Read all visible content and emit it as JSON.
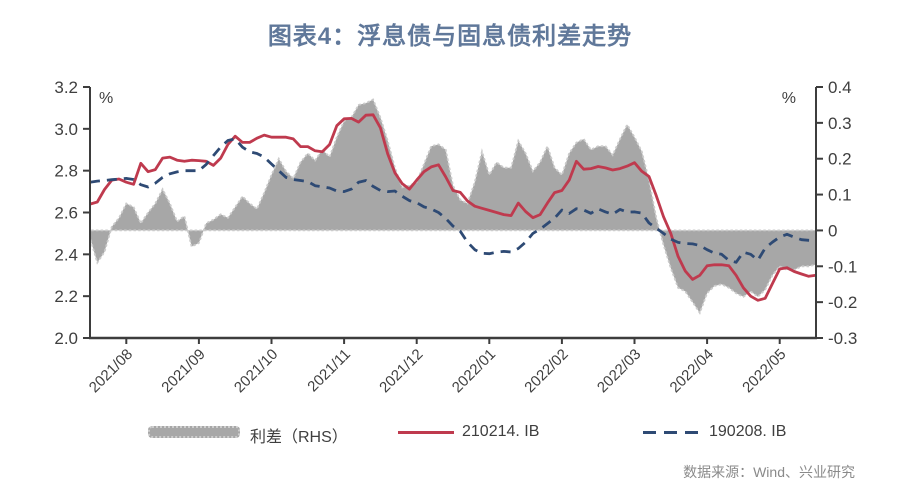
{
  "title": "图表4：浮息债与固息债利差走势",
  "source": "数据来源：Wind、兴业研究",
  "legend": [
    {
      "label": "利差（RHS）",
      "marker": "gray-area-swatch"
    },
    {
      "label": "210214. IB",
      "marker": "red-solid-line"
    },
    {
      "label": "190208. IB",
      "marker": "navy-dashed-line"
    }
  ],
  "colors": {
    "title": "#60789a",
    "red_line": "#bf3a4e",
    "navy_line": "#2e4a74",
    "area_fill": "#a7a7a7",
    "area_edge": "#cbcbcb",
    "axis_line": "#3d3d3d",
    "tick_text": "#3f3f3f",
    "source_text": "#8a8a8a"
  },
  "chart_data": {
    "type": "area",
    "subtype": "dual-axis combo: gray area (right axis) + solid and dashed lines (left axis)",
    "title": "图表4：浮息债与固息债利差走势",
    "x_unit": "month (weekly-resolution samples, 0.1-month step, 2021/08 through 2022/05)",
    "x_start": 0,
    "x_step": 0.1,
    "x_months": 10,
    "x_tick_labels": [
      "2021/08",
      "2021/09",
      "2021/10",
      "2021/11",
      "2021/12",
      "2022/01",
      "2022/02",
      "2022/03",
      "2022/04",
      "2022/05"
    ],
    "left_axis": {
      "unit": "%",
      "min": 2.0,
      "max": 3.2,
      "ticks": [
        {
          "v": 3.2,
          "label": "3.2"
        },
        {
          "v": 3.0,
          "label": "3.0"
        },
        {
          "v": 2.8,
          "label": "2.8"
        },
        {
          "v": 2.6,
          "label": "2.6"
        },
        {
          "v": 2.4,
          "label": "2.4"
        },
        {
          "v": 2.2,
          "label": "2.2"
        },
        {
          "v": 2.0,
          "label": "2.0"
        }
      ]
    },
    "right_axis": {
      "unit": "%",
      "min": -0.3,
      "max": 0.4,
      "ticks": [
        {
          "v": 0.4,
          "label": "0.4"
        },
        {
          "v": 0.3,
          "label": "0.3"
        },
        {
          "v": 0.2,
          "label": "0.2"
        },
        {
          "v": 0.1,
          "label": "0.1"
        },
        {
          "v": 0,
          "label": "0"
        },
        {
          "v": -0.1,
          "label": "-0.1"
        },
        {
          "v": -0.2,
          "label": "-0.2"
        },
        {
          "v": -0.3,
          "label": "-0.3"
        }
      ]
    },
    "grid": false,
    "legend_position": "bottom",
    "series": [
      {
        "name": "利差（RHS）",
        "type": "area",
        "axis": "right",
        "values": [
          -0.02,
          -0.09,
          -0.06,
          0.01,
          0.035,
          0.075,
          0.065,
          0.02,
          0.05,
          0.075,
          0.115,
          0.075,
          0.025,
          0.04,
          -0.045,
          -0.035,
          0.02,
          0.03,
          0.045,
          0.035,
          0.065,
          0.095,
          0.075,
          0.06,
          0.105,
          0.155,
          0.2,
          0.165,
          0.145,
          0.19,
          0.215,
          0.195,
          0.225,
          0.205,
          0.26,
          0.305,
          0.315,
          0.35,
          0.355,
          0.365,
          0.315,
          0.25,
          0.175,
          0.12,
          0.125,
          0.135,
          0.185,
          0.235,
          0.24,
          0.225,
          0.125,
          0.085,
          0.075,
          0.135,
          0.22,
          0.155,
          0.19,
          0.175,
          0.175,
          0.25,
          0.215,
          0.165,
          0.19,
          0.235,
          0.175,
          0.155,
          0.215,
          0.245,
          0.255,
          0.225,
          0.235,
          0.235,
          0.21,
          0.255,
          0.295,
          0.26,
          0.22,
          0.14,
          0.035,
          -0.04,
          -0.105,
          -0.16,
          -0.17,
          -0.2,
          -0.23,
          -0.175,
          -0.155,
          -0.15,
          -0.16,
          -0.175,
          -0.185,
          -0.17,
          -0.185,
          -0.165,
          -0.125,
          -0.1,
          -0.11,
          -0.11,
          -0.1,
          -0.1,
          -0.095
        ]
      },
      {
        "name": "210214.IB",
        "type": "line",
        "dash": false,
        "axis": "left",
        "values": [
          2.64,
          2.65,
          2.71,
          2.755,
          2.76,
          2.745,
          2.735,
          2.835,
          2.795,
          2.805,
          2.86,
          2.865,
          2.85,
          2.845,
          2.85,
          2.848,
          2.845,
          2.825,
          2.86,
          2.925,
          2.965,
          2.935,
          2.935,
          2.955,
          2.97,
          2.96,
          2.96,
          2.96,
          2.952,
          2.915,
          2.915,
          2.895,
          2.89,
          2.925,
          3.015,
          3.048,
          3.05,
          3.032,
          3.065,
          3.067,
          3.005,
          2.88,
          2.79,
          2.738,
          2.712,
          2.755,
          2.795,
          2.818,
          2.828,
          2.77,
          2.705,
          2.696,
          2.655,
          2.63,
          2.62,
          2.61,
          2.6,
          2.59,
          2.585,
          2.645,
          2.605,
          2.575,
          2.59,
          2.645,
          2.695,
          2.705,
          2.755,
          2.845,
          2.807,
          2.81,
          2.82,
          2.813,
          2.803,
          2.81,
          2.822,
          2.838,
          2.797,
          2.772,
          2.68,
          2.58,
          2.5,
          2.39,
          2.32,
          2.28,
          2.3,
          2.345,
          2.35,
          2.35,
          2.345,
          2.3,
          2.24,
          2.2,
          2.18,
          2.19,
          2.26,
          2.33,
          2.336,
          2.318,
          2.306,
          2.295,
          2.3
        ]
      },
      {
        "name": "190208.IB",
        "type": "line",
        "dash": true,
        "axis": "left",
        "values": [
          2.745,
          2.75,
          2.753,
          2.757,
          2.76,
          2.763,
          2.758,
          2.733,
          2.722,
          2.74,
          2.768,
          2.785,
          2.794,
          2.8,
          2.8,
          2.8,
          2.83,
          2.872,
          2.913,
          2.944,
          2.952,
          2.912,
          2.89,
          2.882,
          2.865,
          2.832,
          2.8,
          2.768,
          2.758,
          2.753,
          2.748,
          2.728,
          2.723,
          2.717,
          2.703,
          2.7,
          2.712,
          2.745,
          2.753,
          2.725,
          2.705,
          2.7,
          2.703,
          2.678,
          2.657,
          2.647,
          2.627,
          2.617,
          2.6,
          2.572,
          2.535,
          2.51,
          2.458,
          2.422,
          2.405,
          2.403,
          2.41,
          2.414,
          2.411,
          2.428,
          2.458,
          2.5,
          2.52,
          2.547,
          2.573,
          2.612,
          2.595,
          2.618,
          2.612,
          2.596,
          2.617,
          2.603,
          2.592,
          2.615,
          2.602,
          2.603,
          2.597,
          2.55,
          2.525,
          2.5,
          2.473,
          2.457,
          2.452,
          2.45,
          2.442,
          2.422,
          2.406,
          2.4,
          2.371,
          2.362,
          2.41,
          2.4,
          2.372,
          2.43,
          2.458,
          2.483,
          2.496,
          2.482,
          2.47,
          2.467,
          2.465
        ]
      }
    ]
  }
}
